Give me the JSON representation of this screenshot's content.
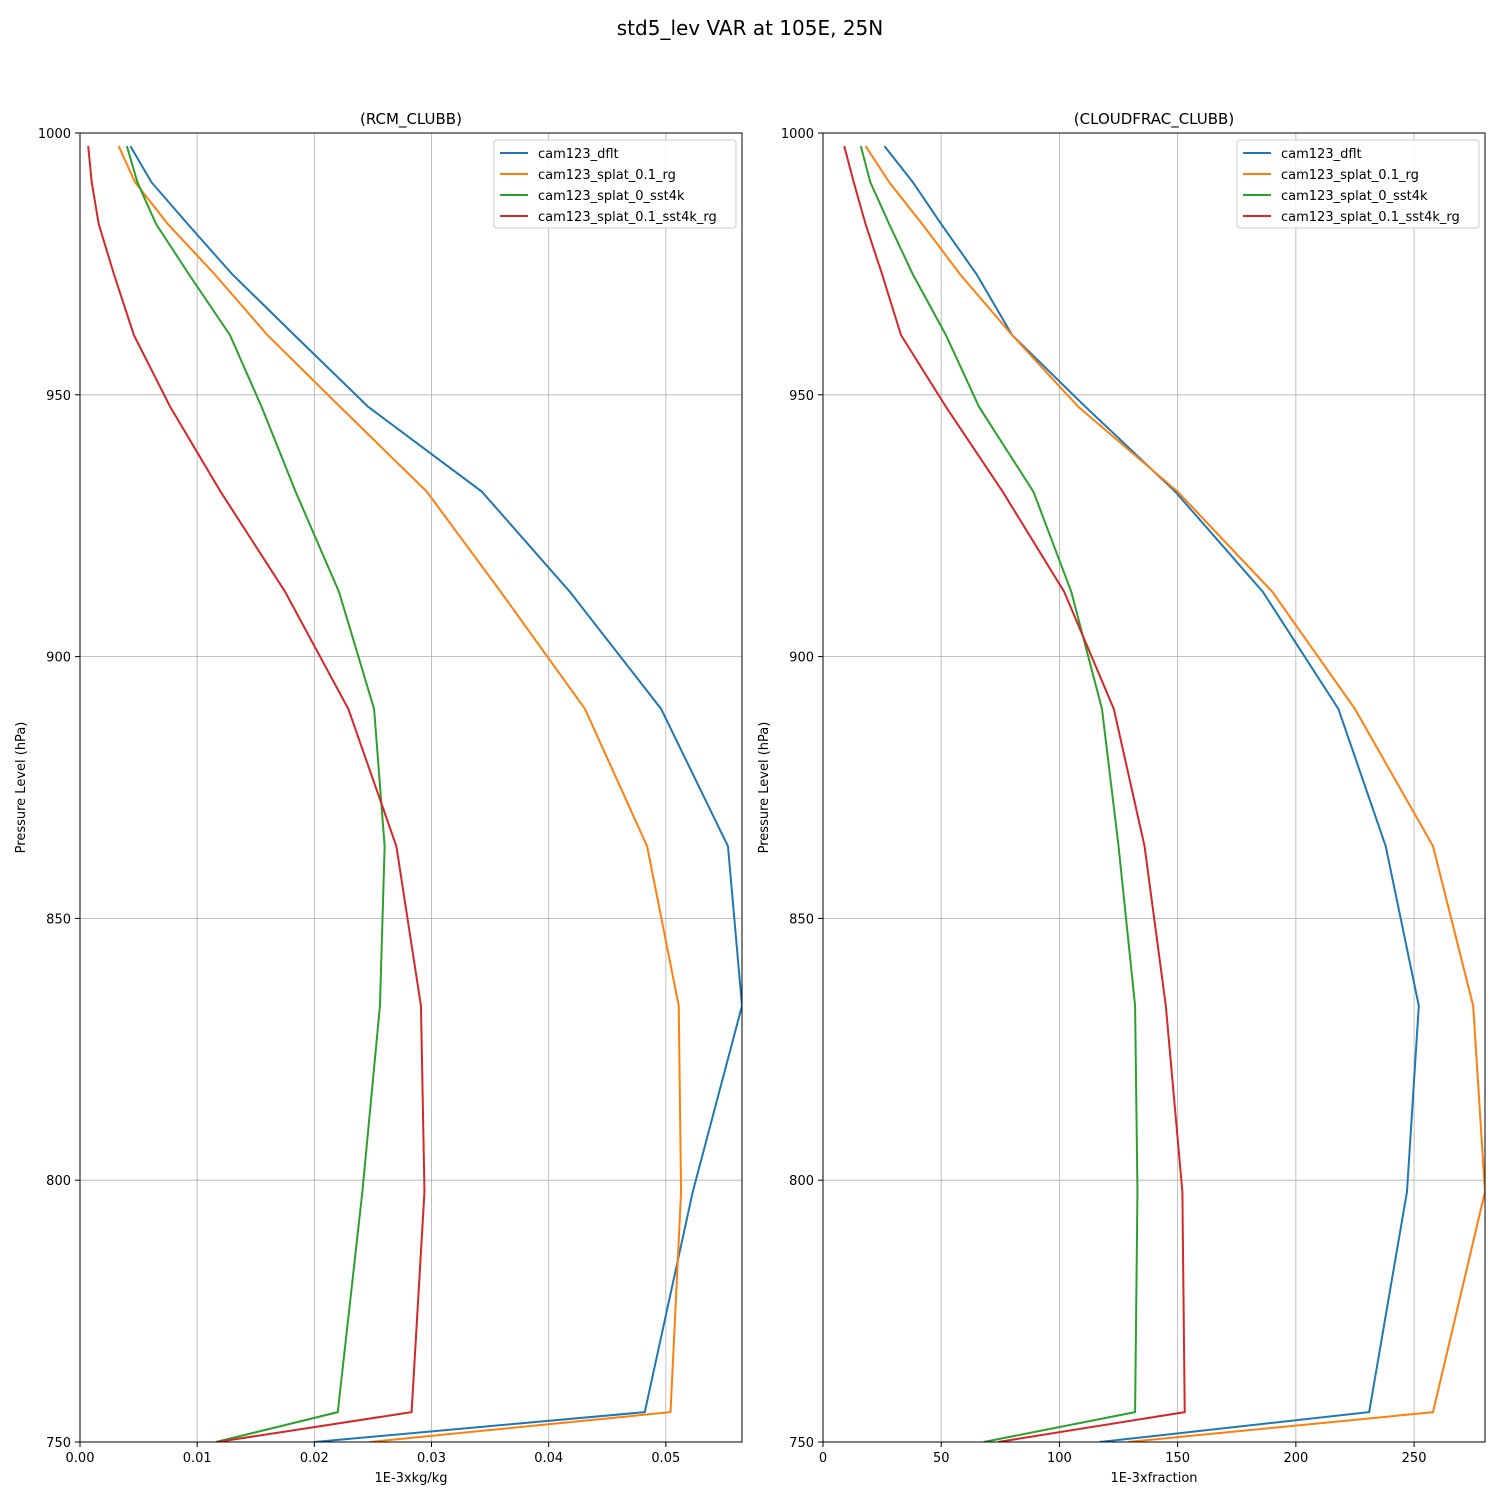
{
  "figure": {
    "suptitle": "std5_lev VAR at 105E, 25N",
    "series_colors": {
      "cam123_dflt": "#1f77b4",
      "cam123_splat_0.1_rg": "#ff7f0e",
      "cam123_splat_0_sst4k": "#2ca02c",
      "cam123_splat_0.1_sst4k_rg": "#d62728"
    }
  },
  "chart_data": [
    {
      "type": "line",
      "title": "(RCM_CLUBB)",
      "xlabel": "1E-3xkg/kg",
      "ylabel": "Pressure Level (hPa)",
      "xlim": [
        0.0,
        0.0565
      ],
      "ylim": [
        1000,
        750
      ],
      "y_inverted": true,
      "grid": true,
      "legend": "top-right",
      "xticks": [
        0.0,
        0.01,
        0.02,
        0.03,
        0.04,
        0.05
      ],
      "xtick_labels": [
        "0.00",
        "0.01",
        "0.02",
        "0.03",
        "0.04",
        "0.05"
      ],
      "yticks": [
        750,
        800,
        850,
        900,
        950,
        1000
      ],
      "ytick_labels": [
        "750",
        "800",
        "850",
        "900",
        "950",
        "1000"
      ],
      "y": [
        997.5,
        990.6,
        982.6,
        973.0,
        961.4,
        947.7,
        931.5,
        912.4,
        890.0,
        863.8,
        833.3,
        797.8,
        755.7,
        750
      ],
      "series": [
        {
          "name": "cam123_dflt",
          "x": [
            0.0043,
            0.0061,
            0.0092,
            0.013,
            0.0183,
            0.0246,
            0.0343,
            0.0418,
            0.0496,
            0.0553,
            0.0565,
            0.0523,
            0.0482,
            0.02
          ]
        },
        {
          "name": "cam123_splat_0.1_rg",
          "x": [
            0.0033,
            0.0047,
            0.0075,
            0.0115,
            0.016,
            0.0222,
            0.0296,
            0.0359,
            0.0431,
            0.0484,
            0.0511,
            0.0513,
            0.0504,
            0.0247
          ]
        },
        {
          "name": "cam123_splat_0_sst4k",
          "x": [
            0.004,
            0.0049,
            0.0065,
            0.0093,
            0.0128,
            0.0155,
            0.0184,
            0.0221,
            0.0251,
            0.026,
            0.0256,
            0.0241,
            0.022,
            0.0116
          ]
        },
        {
          "name": "cam123_splat_0.1_sst4k_rg",
          "x": [
            0.0007,
            0.001,
            0.0016,
            0.0029,
            0.0046,
            0.0077,
            0.012,
            0.0175,
            0.0229,
            0.027,
            0.0291,
            0.0294,
            0.0283,
            0.0117
          ]
        }
      ]
    },
    {
      "type": "line",
      "title": "(CLOUDFRAC_CLUBB)",
      "xlabel": "1E-3xfraction",
      "ylabel": "Pressure Level (hPa)",
      "xlim": [
        0,
        280
      ],
      "ylim": [
        1000,
        750
      ],
      "y_inverted": true,
      "grid": true,
      "legend": "top-right",
      "xticks": [
        0,
        50,
        100,
        150,
        200,
        250
      ],
      "xtick_labels": [
        "0",
        "50",
        "100",
        "150",
        "200",
        "250"
      ],
      "yticks": [
        750,
        800,
        850,
        900,
        950,
        1000
      ],
      "ytick_labels": [
        "750",
        "800",
        "850",
        "900",
        "950",
        "1000"
      ],
      "y": [
        997.5,
        990.6,
        982.6,
        973.0,
        961.4,
        947.7,
        931.5,
        912.4,
        890.0,
        863.8,
        833.3,
        797.8,
        755.7,
        750
      ],
      "series": [
        {
          "name": "cam123_dflt",
          "x": [
            26,
            38,
            50,
            65,
            80,
            111,
            149,
            186,
            218,
            238,
            252,
            247,
            231,
            117
          ]
        },
        {
          "name": "cam123_splat_0.1_rg",
          "x": [
            18,
            28,
            42,
            58,
            80,
            108,
            150,
            190,
            225,
            258,
            275,
            280,
            258,
            129
          ]
        },
        {
          "name": "cam123_splat_0_sst4k",
          "x": [
            16,
            20,
            28,
            38,
            52,
            66,
            89,
            105,
            118,
            125,
            132,
            133,
            132,
            68
          ]
        },
        {
          "name": "cam123_splat_0.1_sst4k_rg",
          "x": [
            9,
            13,
            18,
            25,
            33,
            52,
            76,
            102,
            123,
            136,
            145,
            152,
            153,
            74
          ]
        }
      ]
    }
  ]
}
